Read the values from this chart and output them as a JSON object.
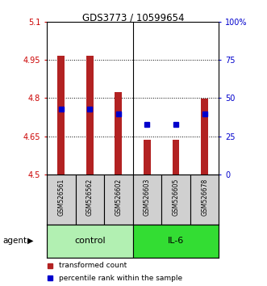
{
  "title": "GDS3773 / 10599654",
  "samples": [
    "GSM526561",
    "GSM526562",
    "GSM526602",
    "GSM526603",
    "GSM526605",
    "GSM526678"
  ],
  "groups": [
    "control",
    "control",
    "control",
    "IL-6",
    "IL-6",
    "IL-6"
  ],
  "bar_values": [
    4.967,
    4.967,
    4.822,
    4.637,
    4.637,
    4.797
  ],
  "bar_bottom": 4.5,
  "percentile_values": [
    4.757,
    4.757,
    4.737,
    4.697,
    4.697,
    4.737
  ],
  "bar_color": "#b22222",
  "percentile_color": "#0000cc",
  "ylim": [
    4.5,
    5.1
  ],
  "yticks": [
    4.5,
    4.65,
    4.8,
    4.95,
    5.1
  ],
  "ytick_labels": [
    "4.5",
    "4.65",
    "4.8",
    "4.95",
    "5.1"
  ],
  "y2ticks": [
    0,
    25,
    50,
    75,
    100
  ],
  "y2tick_labels": [
    "0",
    "25",
    "50",
    "75",
    "100%"
  ],
  "ylabel_color": "#cc0000",
  "y2label_color": "#0000cc",
  "group_colors": {
    "control": "#b2f0b2",
    "IL-6": "#33dd33"
  },
  "group_label_fontsize": 8,
  "bar_width": 0.25,
  "percentile_marker_size": 4,
  "background_color": "#ffffff",
  "plot_bg_color": "#ffffff",
  "agent_label": "agent",
  "grid_style": "dotted",
  "grid_color": "#000000",
  "grid_alpha": 1.0,
  "sample_bg_color": "#d0d0d0"
}
